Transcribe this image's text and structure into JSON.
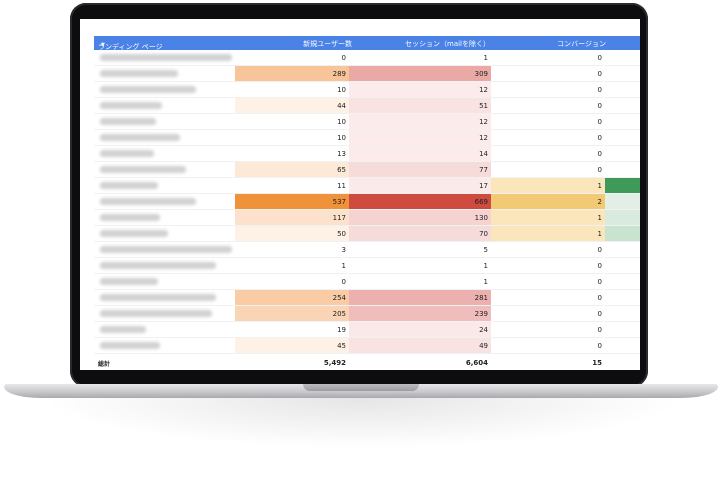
{
  "table": {
    "headers": {
      "landing_page": "ランディング ページ",
      "new_users": "新規ユーザー数",
      "sessions": "セッション（mailを除く）",
      "conversions": "コンバージョン"
    },
    "rows": [
      {
        "new_users": "0",
        "sessions": "1",
        "conversions": "0",
        "users_color": "#ffffff",
        "sess_color": "#ffffff",
        "conv_color": "#ffffff",
        "ext_color": "#ffffff",
        "blur_w": 132
      },
      {
        "new_users": "289",
        "sessions": "309",
        "conversions": "0",
        "users_color": "#f8c49a",
        "sess_color": "#eba9a6",
        "conv_color": "#ffffff",
        "ext_color": "#ffffff",
        "blur_w": 78
      },
      {
        "new_users": "10",
        "sessions": "12",
        "conversions": "0",
        "users_color": "#ffffff",
        "sess_color": "#fbeceb",
        "conv_color": "#ffffff",
        "ext_color": "#ffffff",
        "blur_w": 96
      },
      {
        "new_users": "44",
        "sessions": "51",
        "conversions": "0",
        "users_color": "#fef1e6",
        "sess_color": "#f8e3e2",
        "conv_color": "#ffffff",
        "ext_color": "#ffffff",
        "blur_w": 62
      },
      {
        "new_users": "10",
        "sessions": "12",
        "conversions": "0",
        "users_color": "#ffffff",
        "sess_color": "#fbeceb",
        "conv_color": "#ffffff",
        "ext_color": "#ffffff",
        "blur_w": 56
      },
      {
        "new_users": "10",
        "sessions": "12",
        "conversions": "0",
        "users_color": "#ffffff",
        "sess_color": "#fbeceb",
        "conv_color": "#ffffff",
        "ext_color": "#ffffff",
        "blur_w": 80
      },
      {
        "new_users": "13",
        "sessions": "14",
        "conversions": "0",
        "users_color": "#ffffff",
        "sess_color": "#fbebea",
        "conv_color": "#ffffff",
        "ext_color": "#ffffff",
        "blur_w": 54
      },
      {
        "new_users": "65",
        "sessions": "77",
        "conversions": "0",
        "users_color": "#fde9d8",
        "sess_color": "#f5dcdb",
        "conv_color": "#ffffff",
        "ext_color": "#ffffff",
        "blur_w": 86
      },
      {
        "new_users": "11",
        "sessions": "17",
        "conversions": "1",
        "users_color": "#ffffff",
        "sess_color": "#faeae9",
        "conv_color": "#fae6ba",
        "ext_color": "#3f9a5a",
        "blur_w": 58
      },
      {
        "new_users": "537",
        "sessions": "669",
        "conversions": "2",
        "users_color": "#f0923a",
        "sess_color": "#cf4a3f",
        "conv_color": "#f3ca74",
        "ext_color": "#e3efe6",
        "blur_w": 96
      },
      {
        "new_users": "117",
        "sessions": "130",
        "conversions": "1",
        "users_color": "#fce2cc",
        "sess_color": "#f4d3d1",
        "conv_color": "#fae6ba",
        "ext_color": "#d8ebde",
        "blur_w": 60
      },
      {
        "new_users": "50",
        "sessions": "70",
        "conversions": "1",
        "users_color": "#fef1e6",
        "sess_color": "#f5dcdb",
        "conv_color": "#fae6ba",
        "ext_color": "#c9e3d1",
        "blur_w": 68
      },
      {
        "new_users": "3",
        "sessions": "5",
        "conversions": "0",
        "users_color": "#ffffff",
        "sess_color": "#ffffff",
        "conv_color": "#ffffff",
        "ext_color": "#ffffff",
        "blur_w": 132
      },
      {
        "new_users": "1",
        "sessions": "1",
        "conversions": "0",
        "users_color": "#ffffff",
        "sess_color": "#ffffff",
        "conv_color": "#ffffff",
        "ext_color": "#ffffff",
        "blur_w": 116
      },
      {
        "new_users": "0",
        "sessions": "1",
        "conversions": "0",
        "users_color": "#ffffff",
        "sess_color": "#ffffff",
        "conv_color": "#ffffff",
        "ext_color": "#ffffff",
        "blur_w": 58
      },
      {
        "new_users": "254",
        "sessions": "281",
        "conversions": "0",
        "users_color": "#f9cca5",
        "sess_color": "#ecb0ae",
        "conv_color": "#ffffff",
        "ext_color": "#ffffff",
        "blur_w": 116
      },
      {
        "new_users": "205",
        "sessions": "239",
        "conversions": "0",
        "users_color": "#fad5b5",
        "sess_color": "#efbdbb",
        "conv_color": "#ffffff",
        "ext_color": "#ffffff",
        "blur_w": 112
      },
      {
        "new_users": "19",
        "sessions": "24",
        "conversions": "0",
        "users_color": "#ffffff",
        "sess_color": "#fae9e8",
        "conv_color": "#ffffff",
        "ext_color": "#ffffff",
        "blur_w": 46
      },
      {
        "new_users": "45",
        "sessions": "49",
        "conversions": "0",
        "users_color": "#fef1e6",
        "sess_color": "#f8e3e2",
        "conv_color": "#ffffff",
        "ext_color": "#ffffff",
        "blur_w": 60
      }
    ],
    "totals": {
      "label": "総計",
      "new_users": "5,492",
      "sessions": "6,604",
      "conversions": "15"
    }
  },
  "colors": {
    "header_bg": "#4a82e6",
    "laptop_bezel": "#0d0d0f"
  },
  "icons": {
    "sort": "caret-down-icon"
  }
}
